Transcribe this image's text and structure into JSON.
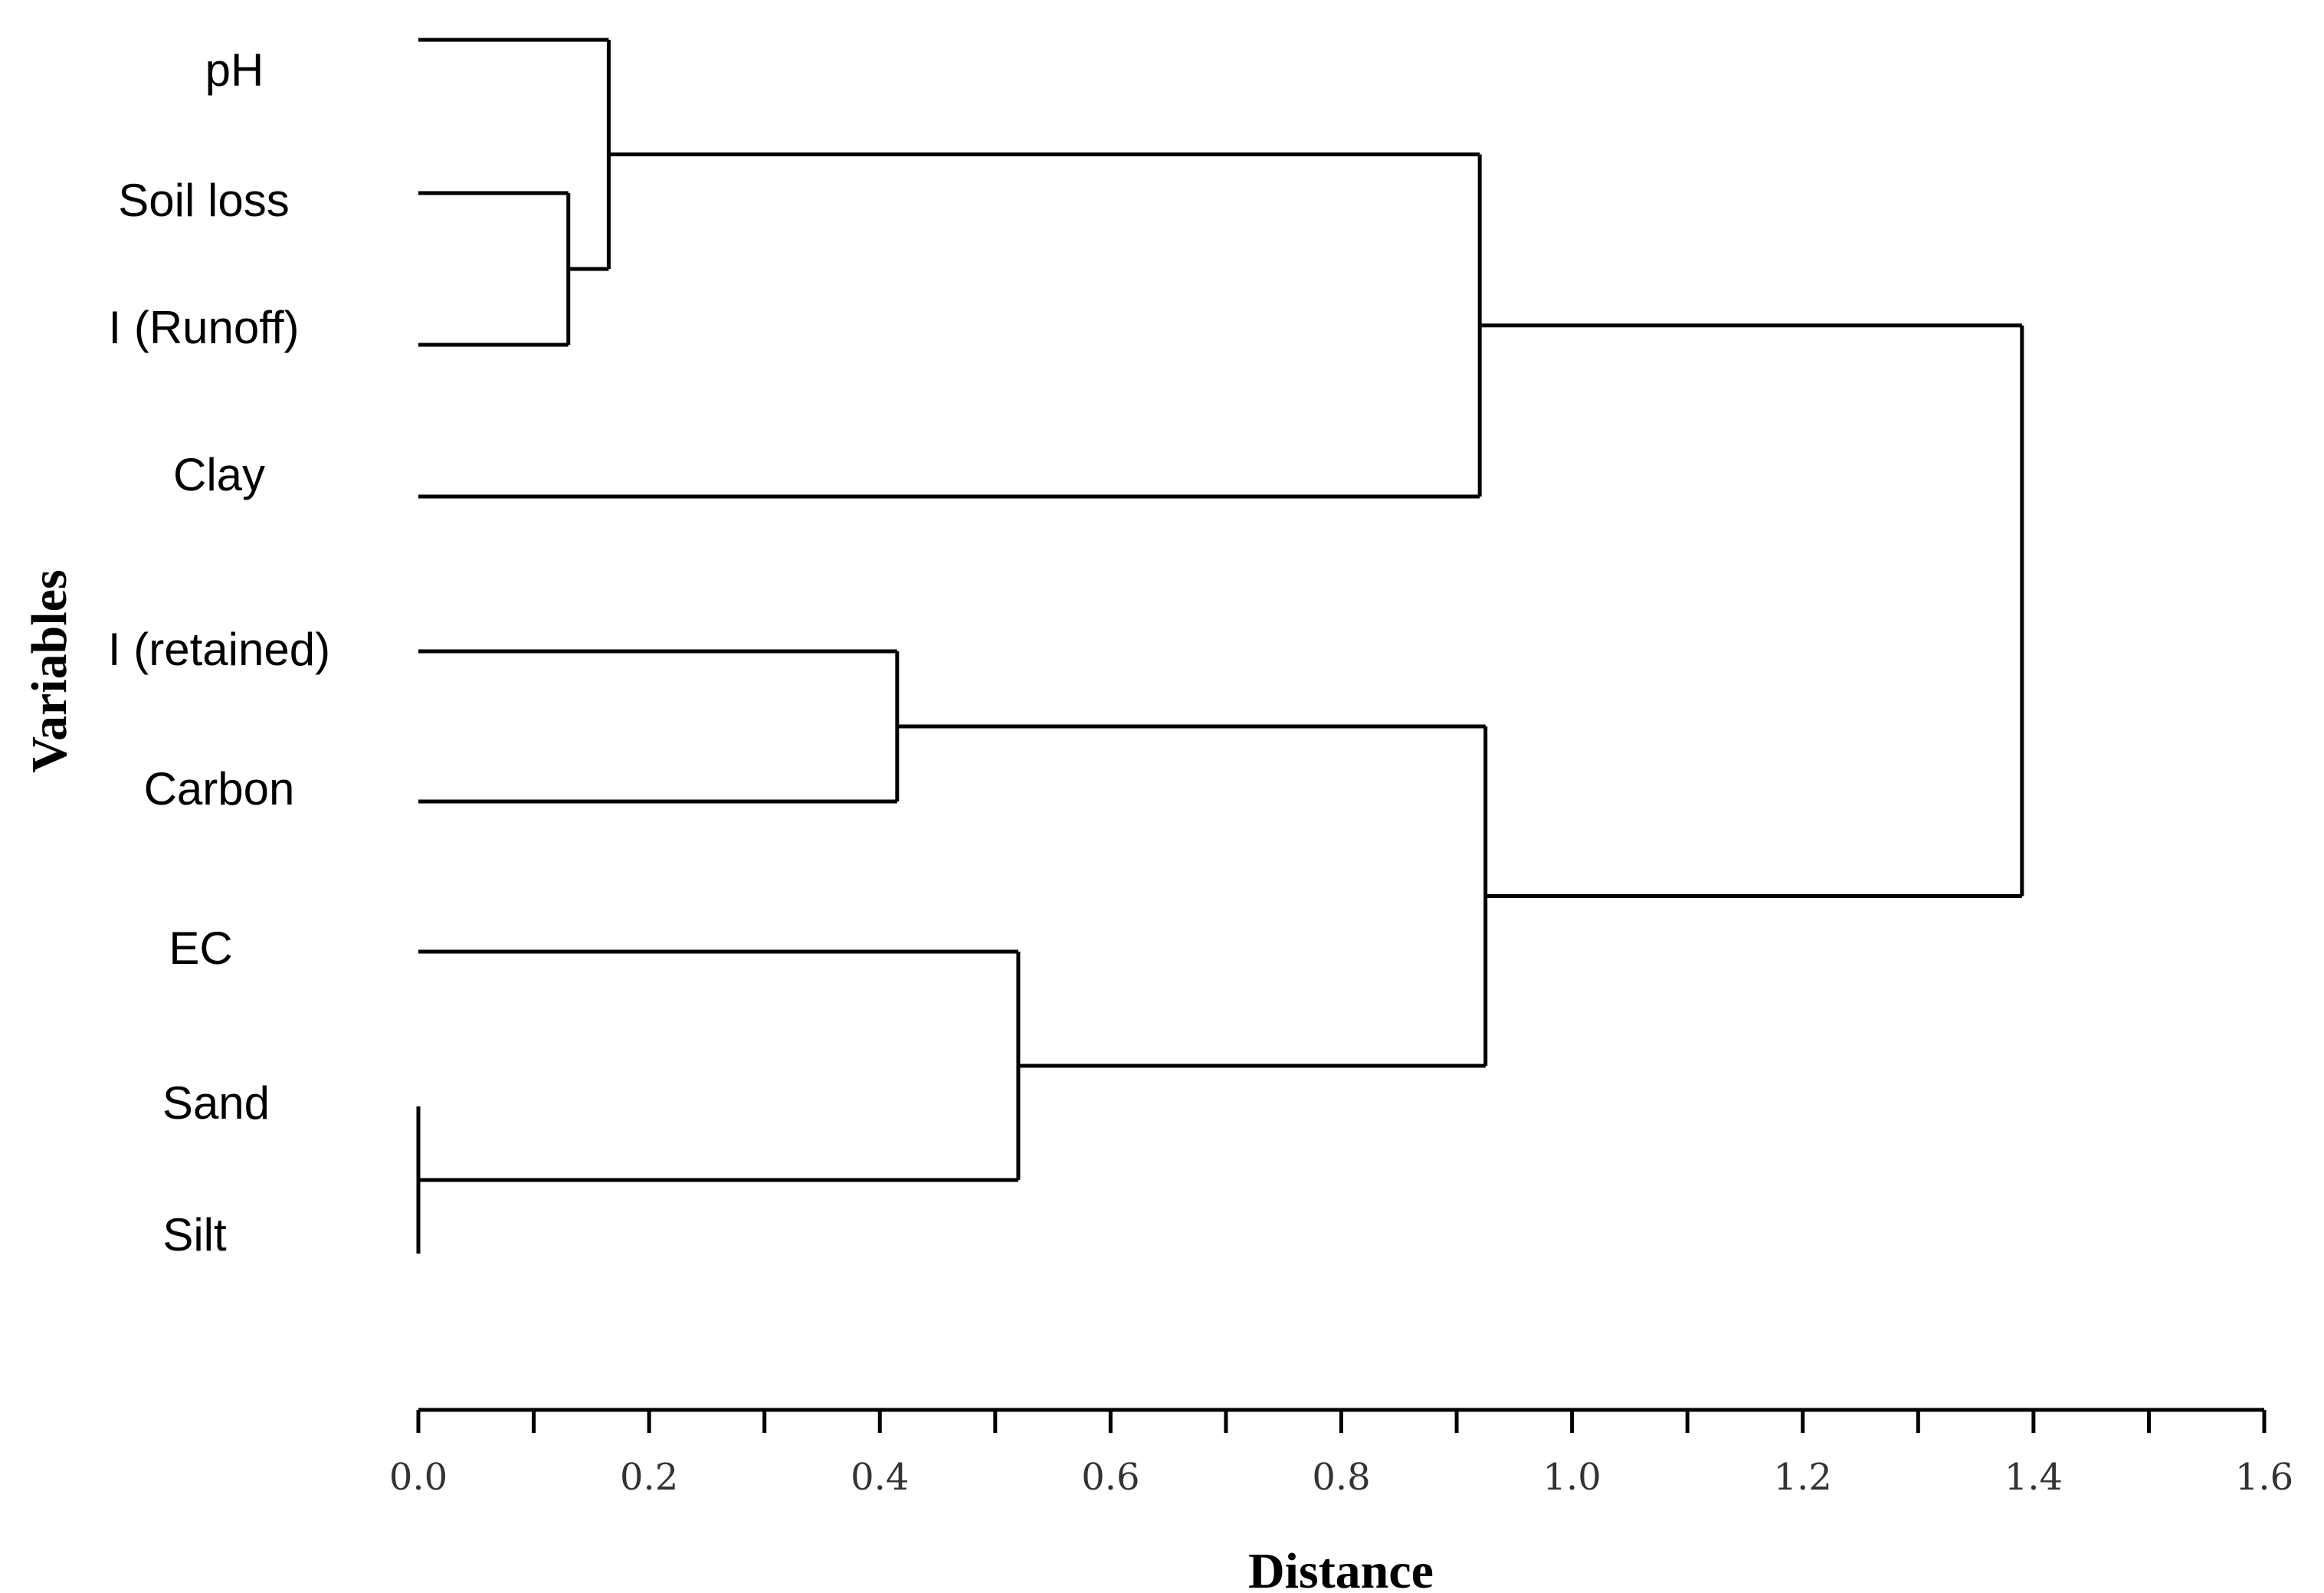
{
  "chart_data": {
    "type": "dendrogram",
    "xlabel": "Distance",
    "ylabel": "Variables",
    "xlim": [
      0.0,
      1.6
    ],
    "x_ticks": [
      "0.0",
      "0.2",
      "0.4",
      "0.6",
      "0.8",
      "1.0",
      "1.2",
      "1.4",
      "1.6"
    ],
    "leaves": [
      "pH",
      "Soil loss",
      "I (Runoff)",
      "Clay",
      "I (retained)",
      "Carbon",
      "EC",
      "Sand",
      "Silt"
    ],
    "merges": [
      {
        "id": "m1",
        "children": [
          "Sand",
          "Silt"
        ],
        "distance": 0.0
      },
      {
        "id": "m2",
        "children": [
          "Soil loss",
          "I (Runoff)"
        ],
        "distance": 0.13
      },
      {
        "id": "m3",
        "children": [
          "pH",
          "m2"
        ],
        "distance": 0.165
      },
      {
        "id": "m4",
        "children": [
          "I (retained)",
          "Carbon"
        ],
        "distance": 0.415
      },
      {
        "id": "m5",
        "children": [
          "EC",
          "m1"
        ],
        "distance": 0.52
      },
      {
        "id": "m6",
        "children": [
          "m3",
          "Clay"
        ],
        "distance": 0.92
      },
      {
        "id": "m7",
        "children": [
          "m4",
          "m5"
        ],
        "distance": 0.925
      },
      {
        "id": "m8",
        "children": [
          "m6",
          "m7"
        ],
        "distance": 1.39
      }
    ]
  }
}
